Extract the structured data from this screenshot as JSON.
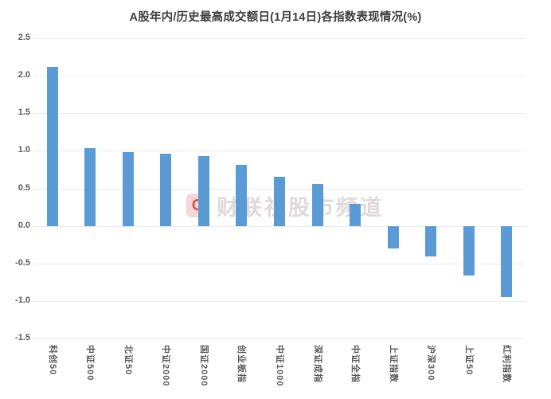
{
  "title": "A股年内/历史最高成交额日(1月14日)各指数表现情况(%)",
  "watermark": {
    "logo_letter": "C",
    "text": "财联社股市频道"
  },
  "colors": {
    "bar": "#5b9bd5",
    "grid": "#ebebeb",
    "axis_text": "#595959",
    "title_text": "#3f3f3f"
  },
  "chart_data": {
    "type": "bar",
    "title": "A股年内/历史最高成交额日(1月14日)各指数表现情况(%)",
    "categories": [
      "科创50",
      "中证500",
      "北证50",
      "中证2000",
      "国证2000",
      "创业板指",
      "中证1000",
      "深证成指",
      "中证全指",
      "上证指数",
      "沪深300",
      "上证50",
      "红利指数"
    ],
    "values": [
      2.12,
      1.04,
      0.98,
      0.96,
      0.93,
      0.81,
      0.65,
      0.56,
      0.29,
      -0.3,
      -0.41,
      -0.66,
      -0.95
    ],
    "xlabel": "",
    "ylabel": "",
    "ylim": [
      -1.5,
      2.5
    ],
    "ytick_step": 0.5,
    "ytick_labels": [
      "2.5",
      "2.0",
      "1.5",
      "1.0",
      "0.5",
      "0.0",
      "-0.5",
      "-1.0",
      "-1.5"
    ],
    "grid": true,
    "legend_position": "none",
    "bar_color": "#5b9bd5"
  }
}
